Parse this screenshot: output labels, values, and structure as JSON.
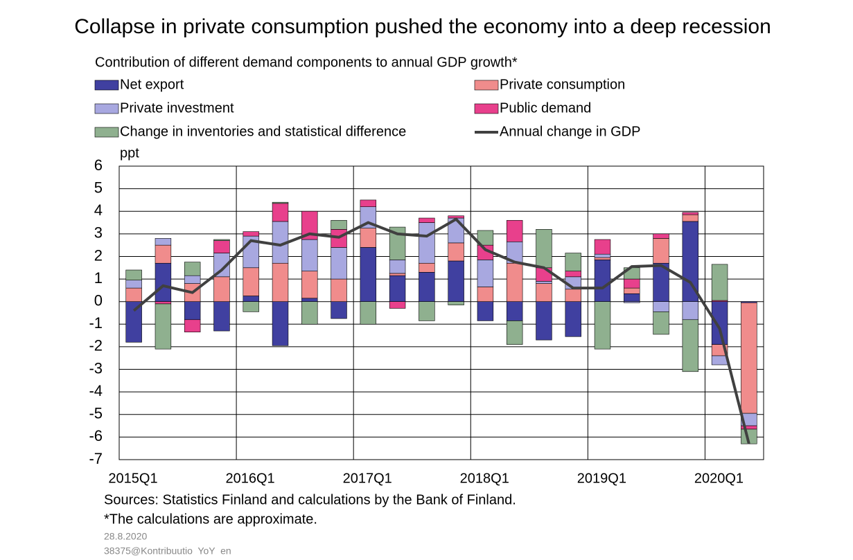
{
  "chart_data": {
    "type": "bar",
    "title": "Collapse in private consumption pushed the economy into a deep recession",
    "subtitle": "Contribution of different demand components to annual GDP growth*",
    "y_label": "ppt",
    "categories": [
      "2015Q1",
      null,
      null,
      null,
      "2016Q1",
      null,
      null,
      null,
      "2017Q1",
      null,
      null,
      null,
      "2018Q1",
      null,
      null,
      null,
      "2019Q1",
      null,
      null,
      null,
      "2020Q1",
      null
    ],
    "series": [
      {
        "name": "Net export",
        "color": "#4040a0",
        "type": "bar",
        "values": [
          -1.8,
          1.7,
          -0.8,
          -1.3,
          0.25,
          -1.95,
          0.15,
          -0.75,
          2.4,
          1.15,
          1.3,
          1.8,
          -0.85,
          -0.85,
          -1.7,
          -1.55,
          1.85,
          0.35,
          1.7,
          3.55,
          -1.9,
          -0.05
        ]
      },
      {
        "name": "Private consumption",
        "color": "#f08c8c",
        "type": "bar",
        "values": [
          0.6,
          0.8,
          0.8,
          1.1,
          1.25,
          1.7,
          1.2,
          1.0,
          0.85,
          0.1,
          0.4,
          0.8,
          0.65,
          1.7,
          0.8,
          0.55,
          0.1,
          0.25,
          1.1,
          0.3,
          -0.5,
          -4.9
        ]
      },
      {
        "name": "Private investment",
        "color": "#a8a8e0",
        "type": "bar",
        "values": [
          0.35,
          0.3,
          0.35,
          1.05,
          1.4,
          1.85,
          1.4,
          1.4,
          0.95,
          0.6,
          1.8,
          1.1,
          1.2,
          0.95,
          0.1,
          0.55,
          0.15,
          -0.05,
          -0.45,
          -0.8,
          -0.4,
          -0.55
        ]
      },
      {
        "name": "Public demand",
        "color": "#e8408c",
        "type": "bar",
        "values": [
          0,
          -0.1,
          -0.55,
          0.55,
          0.2,
          0.8,
          1.25,
          0.8,
          0.3,
          -0.3,
          0.2,
          0.1,
          0.65,
          0.95,
          0.6,
          0.25,
          0.65,
          0.4,
          0.2,
          0.1,
          0.05,
          -0.15
        ]
      },
      {
        "name": "Change in inventories and statistical difference",
        "color": "#8fb08f",
        "type": "bar",
        "values": [
          0.45,
          -2.0,
          0.6,
          0.05,
          -0.45,
          0.05,
          -1.0,
          0.4,
          -1.0,
          1.45,
          -0.85,
          -0.15,
          0.65,
          -1.05,
          1.7,
          0.8,
          -2.1,
          0.5,
          -1.0,
          -2.3,
          1.6,
          -0.65
        ]
      },
      {
        "name": "Annual change in GDP",
        "color": "#404040",
        "type": "line",
        "values": [
          -0.4,
          0.7,
          0.4,
          1.4,
          2.7,
          2.5,
          3.0,
          2.85,
          3.5,
          3.0,
          2.9,
          3.65,
          2.3,
          1.75,
          1.5,
          0.6,
          0.6,
          1.55,
          1.6,
          0.85,
          -1.2,
          -6.3
        ]
      }
    ],
    "ylim": [
      -7,
      6
    ],
    "yticks": [
      -7,
      -6,
      -5,
      -4,
      -3,
      -2,
      -1,
      0,
      1,
      2,
      3,
      4,
      5,
      6
    ],
    "grid": true,
    "sources": "Sources: Statistics Finland and calculations by the Bank of Finland.",
    "note": "*The calculations are approximate.",
    "date": "28.8.2020",
    "code": "38375@Kontribuutio  YoY  en"
  }
}
